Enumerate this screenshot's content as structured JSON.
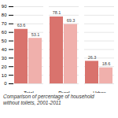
{
  "chart_data": {
    "type": "bar",
    "title": "Comparison of percentage of household\nwithout toilets, 2001-2011",
    "categories": [
      "Total",
      "Rural",
      "Urban"
    ],
    "series": [
      {
        "color": "#d9736d",
        "values": [
          63.6,
          78.1,
          26.3
        ]
      },
      {
        "color": "#f0b0ac",
        "values": [
          53.1,
          69.3,
          18.6
        ]
      }
    ],
    "ylim": [
      0,
      90
    ],
    "yticks": [
      0,
      10,
      20,
      30,
      40,
      50,
      60,
      70,
      80,
      90
    ],
    "grid": true,
    "data_labels": true
  }
}
